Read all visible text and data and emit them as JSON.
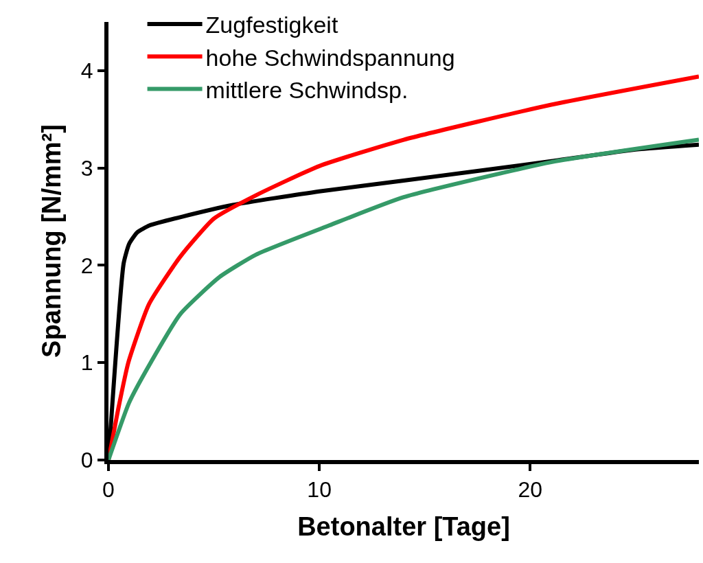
{
  "chart_data": {
    "type": "line",
    "xlabel": "Betonalter [Tage]",
    "ylabel": "Spannung [N/mm²]",
    "xlim": [
      0,
      28
    ],
    "xticks": [
      0,
      10,
      20
    ],
    "ylim": [
      0,
      4.5
    ],
    "yticks": [
      0,
      1,
      2,
      3,
      4
    ],
    "legend": "top left",
    "marker": "none",
    "line_style": "solid",
    "series": [
      {
        "name": "Zugfestigkeit",
        "color": "#000000",
        "x": [
          0,
          0.72,
          0.98,
          1.37,
          1.95,
          3.5,
          5.9,
          10,
          14,
          21,
          25,
          28
        ],
        "values": [
          0,
          2.02,
          2.22,
          2.34,
          2.41,
          2.5,
          2.62,
          2.76,
          2.87,
          3.07,
          3.19,
          3.24
        ]
      },
      {
        "name": "hohe Schwindspannung",
        "color": "#ff0000",
        "x": [
          0,
          0.45,
          0.94,
          1.92,
          3.41,
          5,
          7,
          10,
          14,
          21,
          28
        ],
        "values": [
          0,
          0.51,
          1.0,
          1.6,
          2.09,
          2.48,
          2.72,
          3.02,
          3.29,
          3.65,
          3.94
        ]
      },
      {
        "name": "mittlere Schwindsp.",
        "color": "#359a68",
        "x": [
          0,
          0.98,
          2,
          3.41,
          5.27,
          7,
          10.47,
          14,
          21,
          28
        ],
        "values": [
          0,
          0.59,
          1.0,
          1.5,
          1.88,
          2.11,
          2.41,
          2.7,
          3.06,
          3.29
        ]
      }
    ]
  }
}
